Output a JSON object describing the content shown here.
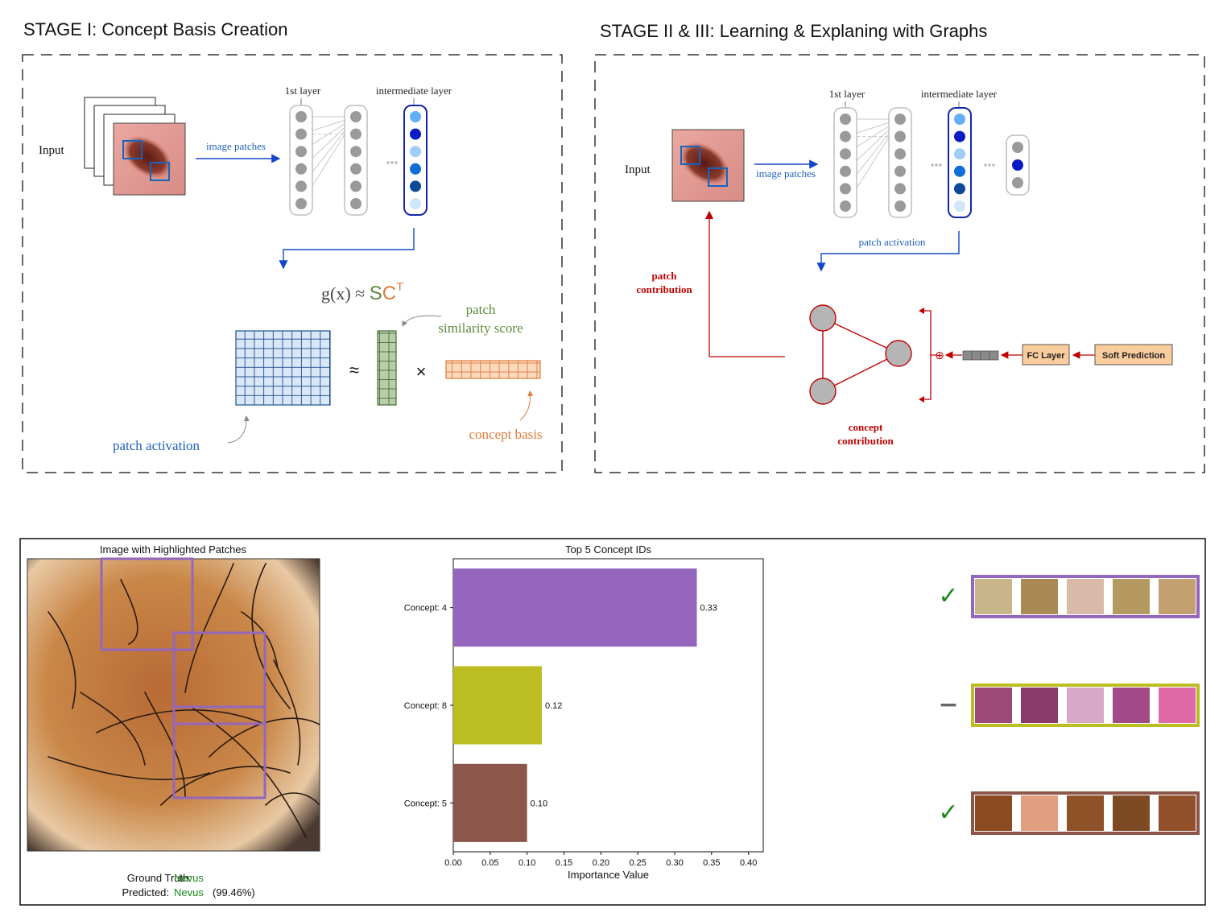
{
  "stage1": {
    "title": "STAGE I: Concept Basis Creation",
    "input_label": "Input",
    "image_patches_label": "image patches",
    "first_layer_label": "1st layer",
    "intermediate_layer_label": "intermediate layer",
    "formula_left": "g(x) ≈ ",
    "formula_s": "S",
    "formula_c": "C",
    "formula_t": "T",
    "approx_symbol": "≈",
    "times_symbol": "×",
    "patch_similarity_line1": "patch",
    "patch_similarity_line2": "similarity score",
    "patch_activation_label": "patch activation",
    "concept_basis_label": "concept basis"
  },
  "stage2": {
    "title": "STAGE II & III: Learning & Explaning with Graphs",
    "input_label": "Input",
    "image_patches_label": "image patches",
    "first_layer_label": "1st layer",
    "intermediate_layer_label": "intermediate layer",
    "patch_activation_label": "patch activation",
    "patch_contribution_line1": "patch",
    "patch_contribution_line2": "contribution",
    "concept_contribution_line1": "concept",
    "concept_contribution_line2": "contribution",
    "fc_layer_label": "FC Layer",
    "soft_prediction_label": "Soft Prediction",
    "oplus_symbol": "⊕"
  },
  "result_panel": {
    "image_title": "Image with Highlighted Patches",
    "ground_truth_label": "Ground Truth:",
    "ground_truth_value": "Nevus",
    "predicted_label": "Predicted:",
    "predicted_value": "Nevus",
    "predicted_confidence": "(99.46%)",
    "marks": [
      {
        "symbol": "✓",
        "color": "#1a8a1a"
      },
      {
        "symbol": "−",
        "color": "#666666"
      },
      {
        "symbol": "✓",
        "color": "#1a8a1a"
      }
    ]
  },
  "chart_data": {
    "type": "bar",
    "orientation": "horizontal",
    "title": "Top 5 Concept IDs",
    "xlabel": "Importance Value",
    "ylabel": "",
    "xlim": [
      0,
      0.42
    ],
    "xticks": [
      "0.00",
      "0.05",
      "0.10",
      "0.15",
      "0.20",
      "0.25",
      "0.30",
      "0.35",
      "0.40"
    ],
    "categories": [
      "Concept: 4",
      "Concept: 8",
      "Concept: 5"
    ],
    "values": [
      0.33,
      0.12,
      0.1
    ],
    "value_labels": [
      "0.33",
      "0.12",
      "0.10"
    ],
    "colors": [
      "#9467bd",
      "#bcbd22",
      "#8c564b"
    ],
    "grid": false
  },
  "colors": {
    "concept_purple": "#9467bd",
    "concept_olive": "#bcbd22",
    "concept_brown": "#8c564b",
    "activation_blue": "#1f5fbf",
    "similarity_green": "#5b8a3a",
    "basis_orange": "#e07b39",
    "contribution_red": "#c00000"
  }
}
